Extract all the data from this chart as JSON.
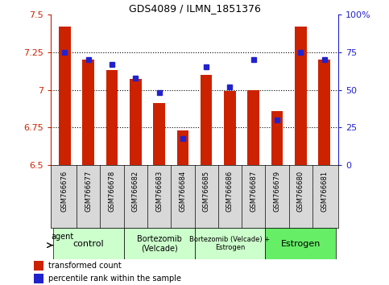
{
  "title": "GDS4089 / ILMN_1851376",
  "samples": [
    "GSM766676",
    "GSM766677",
    "GSM766678",
    "GSM766682",
    "GSM766683",
    "GSM766684",
    "GSM766685",
    "GSM766686",
    "GSM766687",
    "GSM766679",
    "GSM766680",
    "GSM766681"
  ],
  "red_values": [
    7.42,
    7.2,
    7.13,
    7.07,
    6.91,
    6.73,
    7.1,
    6.99,
    7.0,
    6.86,
    7.42,
    7.2
  ],
  "blue_values": [
    75,
    70,
    67,
    58,
    48,
    18,
    65,
    52,
    70,
    30,
    75,
    70
  ],
  "ylim_left": [
    6.5,
    7.5
  ],
  "ylim_right": [
    0,
    100
  ],
  "yticks_left": [
    6.5,
    6.75,
    7.0,
    7.25,
    7.5
  ],
  "yticks_right": [
    0,
    25,
    50,
    75,
    100
  ],
  "ytick_labels_left": [
    "6.5",
    "6.75",
    "7",
    "7.25",
    "7.5"
  ],
  "ytick_labels_right": [
    "0",
    "25",
    "50",
    "75",
    "100%"
  ],
  "group_defs": [
    {
      "label": "control",
      "start": 0,
      "end": 2,
      "color": "#ccffcc",
      "fontsize": 8
    },
    {
      "label": "Bortezomib\n(Velcade)",
      "start": 3,
      "end": 5,
      "color": "#ccffcc",
      "fontsize": 7
    },
    {
      "label": "Bortezomib (Velcade) +\nEstrogen",
      "start": 6,
      "end": 8,
      "color": "#ccffcc",
      "fontsize": 6
    },
    {
      "label": "Estrogen",
      "start": 9,
      "end": 11,
      "color": "#66ee66",
      "fontsize": 8
    }
  ],
  "agent_label": "agent",
  "legend_red": "transformed count",
  "legend_blue": "percentile rank within the sample",
  "bar_color": "#cc2200",
  "blue_color": "#2222cc",
  "left_tick_color": "#cc2200",
  "right_tick_color": "#2222cc",
  "grid_yticks": [
    6.75,
    7.0,
    7.25
  ],
  "xlim": [
    -0.6,
    11.6
  ]
}
